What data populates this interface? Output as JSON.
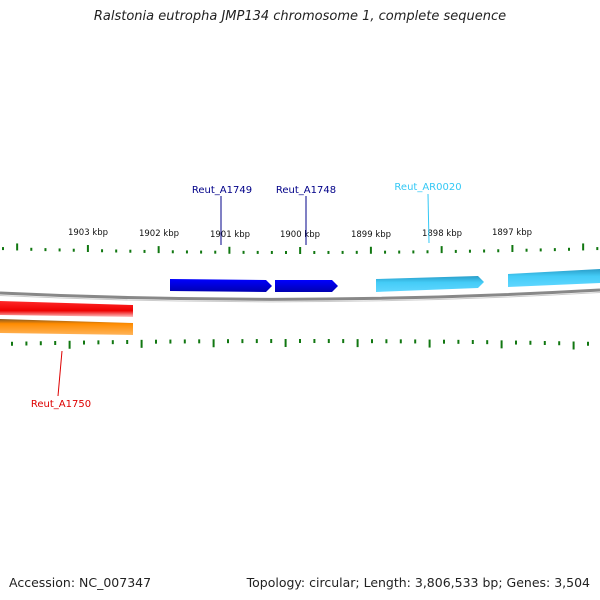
{
  "title": "Ralstonia eutropha JMP134 chromosome 1, complete sequence",
  "footer": {
    "accession": "Accession: NC_007347",
    "summary": "Topology: circular; Length: 3,806,533 bp; Genes: 3,504"
  },
  "scale_labels": [
    "1903 kbp",
    "1902 kbp",
    "1901 kbp",
    "1900 kbp",
    "1899 kbp",
    "1898 kbp",
    "1897 kbp"
  ],
  "genes": [
    {
      "name": "Reut_A1749",
      "strand": "+",
      "color": "#0000dd"
    },
    {
      "name": "Reut_A1748",
      "strand": "+",
      "color": "#0000dd"
    },
    {
      "name": "Reut_AR0020",
      "strand": "+",
      "color": "#33c8f5"
    },
    {
      "name": "Reut_A1750",
      "strand": "-",
      "color": "#dd0000"
    }
  ],
  "colors": {
    "tick": "#117711",
    "backbone": "#888888",
    "gene_forward_dark": "#0000dd",
    "gene_forward_light": "#33c8f5",
    "gene_reverse_red": "#ee0000",
    "gene_reverse_orange": "#ff8800"
  }
}
